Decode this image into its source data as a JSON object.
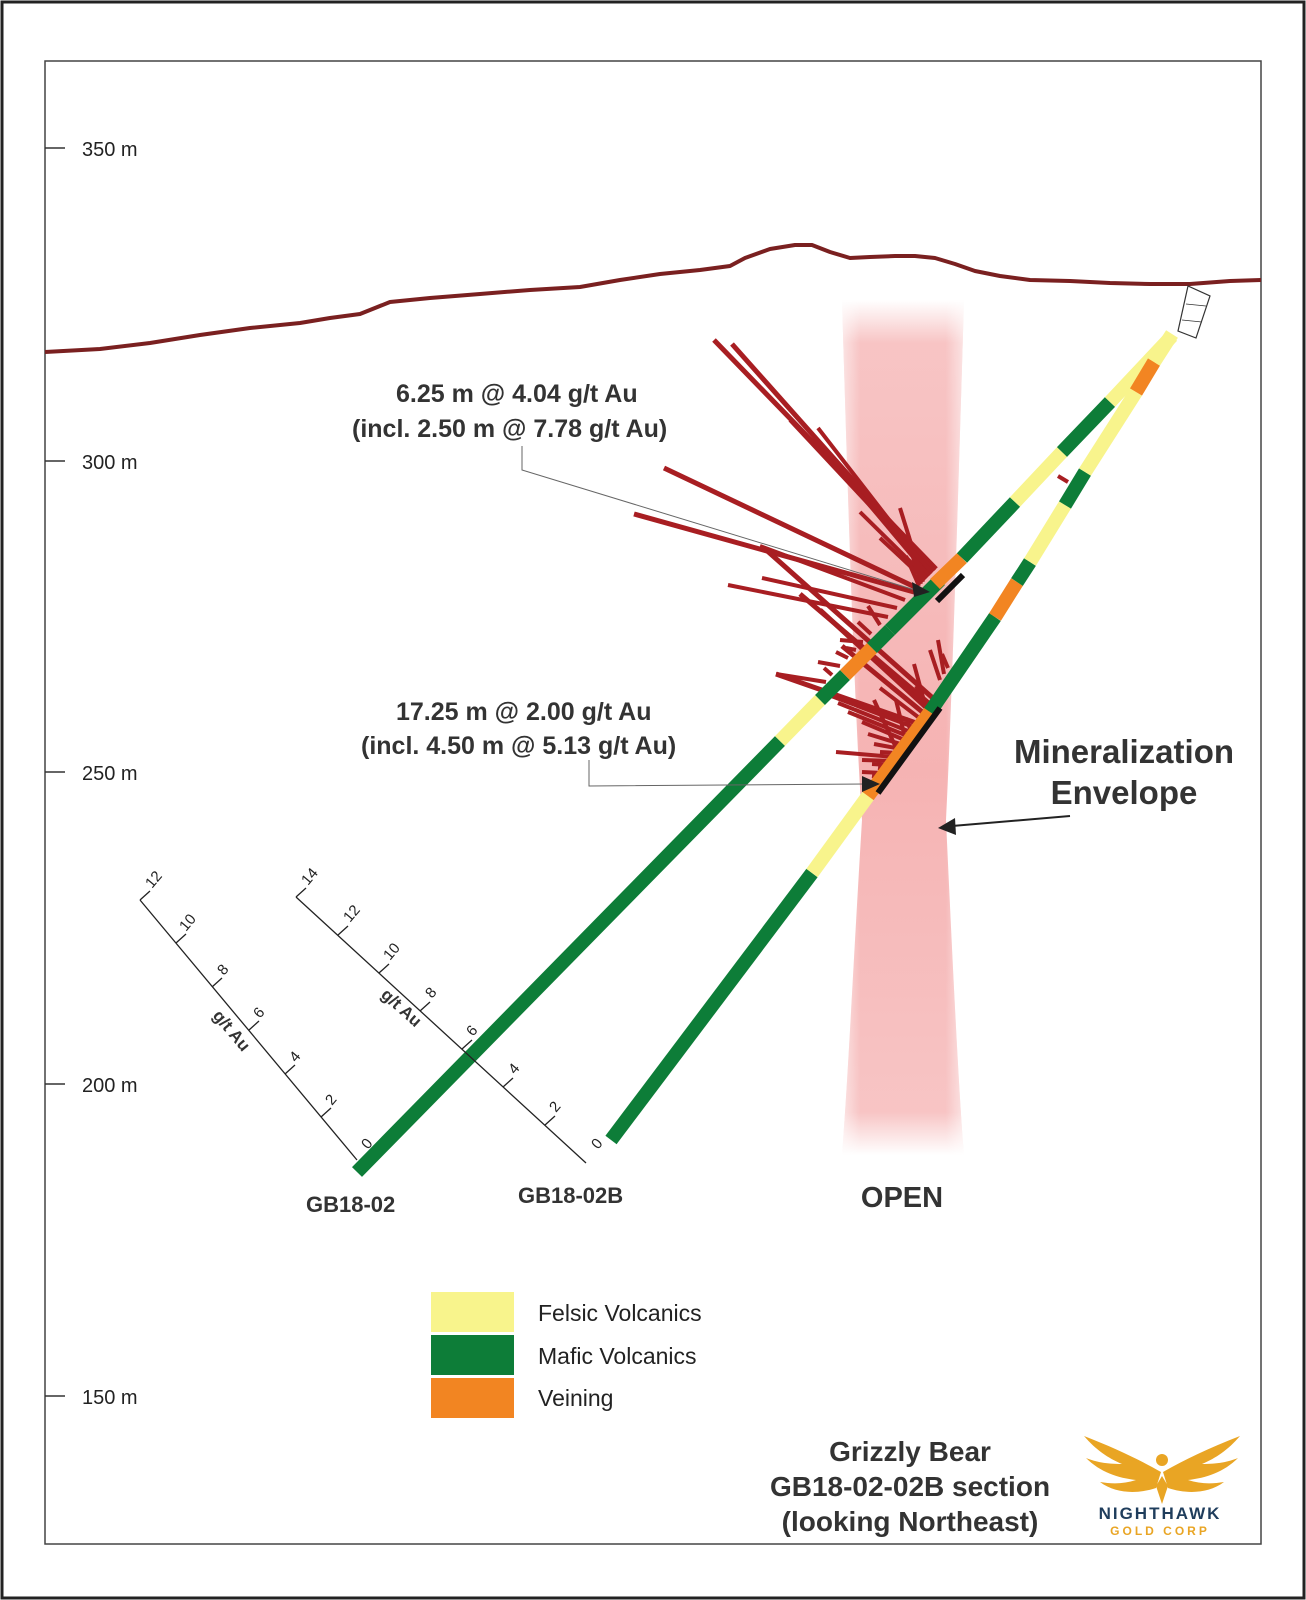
{
  "elevation_axis": {
    "labels": [
      "350 m",
      "300 m",
      "250 m",
      "200 m",
      "150 m"
    ]
  },
  "annotations": {
    "upper_line1": "6.25 m @   4.04 g/t Au",
    "upper_line2": "(incl. 2.50 m @  7.78 g/t Au)",
    "lower_line1": "17.25 m @   2.00 g/t Au",
    "lower_line2": "(incl. 4.50 m @  5.13 g/t Au)",
    "envelope_line1": "Mineralization",
    "envelope_line2": "Envelope",
    "open": "OPEN"
  },
  "drill_holes": [
    {
      "name": "GB18-02"
    },
    {
      "name": "GB18-02B"
    }
  ],
  "grade_scales": {
    "unit": "g/t Au",
    "scale_02": [
      "0",
      "2",
      "4",
      "6",
      "8",
      "10",
      "12"
    ],
    "scale_02b": [
      "0",
      "2",
      "4",
      "6",
      "8",
      "10",
      "12",
      "14"
    ]
  },
  "legend": {
    "items": [
      {
        "label": "Felsic Volcanics",
        "color": "#f8f48c"
      },
      {
        "label": "Mafic Volcanics",
        "color": "#0d7d38"
      },
      {
        "label": "Veining",
        "color": "#f28522"
      }
    ]
  },
  "title": {
    "line1": "Grizzly Bear",
    "line2": "GB18-02-02B section",
    "line3": "(looking Northeast)"
  },
  "logo": {
    "name": "NIGHTHAWK",
    "subtitle": "GOLD CORP"
  },
  "colors": {
    "topography": "#7a2020",
    "assay_bars": "#a81e22",
    "envelope": "#f08a8a",
    "frame": "#333333"
  }
}
